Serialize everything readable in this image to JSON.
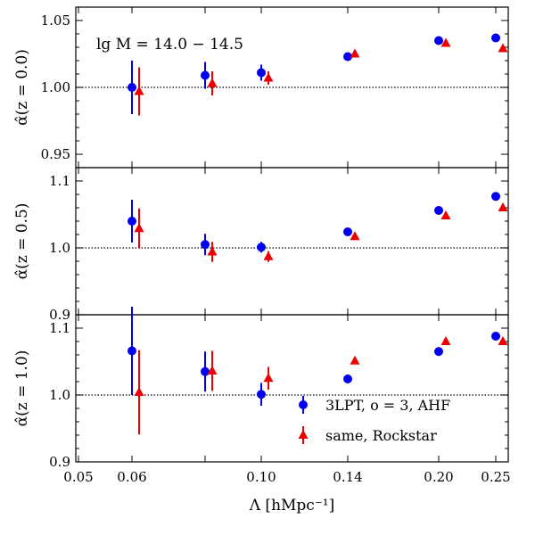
{
  "chart_data": {
    "type": "scatter",
    "x_categories": [
      0.06,
      0.08,
      0.1,
      0.14,
      0.2,
      0.25
    ],
    "xlabel": "Λ [hMpc⁻¹]",
    "xlim": [
      0.05,
      0.25
    ],
    "xticks": [
      "0.05",
      "0.06",
      "0.10",
      "0.14",
      "0.20",
      "0.25"
    ],
    "annotation": "lg M = 14.0 − 14.5",
    "legend": {
      "location": "lower-right",
      "entries": [
        "3LPT, o = 3, AHF",
        "same, Rockstar"
      ]
    },
    "series_colors": {
      "ahf": "#0000ee",
      "rockstar": "#ee0000"
    },
    "panels": [
      {
        "ylabel": "α̂(z = 0.0)",
        "ylim": [
          0.94,
          1.06
        ],
        "yticks": [
          "0.95",
          "1.00",
          "1.05"
        ],
        "reference_line": 1.0,
        "series": [
          {
            "name": "3LPT, o = 3, AHF",
            "marker": "circle",
            "x": [
              0.06,
              0.08,
              0.1,
              0.14,
              0.2,
              0.25
            ],
            "y": [
              1.0,
              1.009,
              1.011,
              1.023,
              1.035,
              1.037
            ],
            "err": [
              0.02,
              0.01,
              0.006,
              0.0,
              0.0,
              0.0
            ]
          },
          {
            "name": "same, Rockstar",
            "marker": "triangle",
            "x": [
              0.06,
              0.08,
              0.1,
              0.14,
              0.2,
              0.25
            ],
            "y": [
              0.997,
              1.003,
              1.007,
              1.025,
              1.033,
              1.029
            ],
            "err": [
              0.018,
              0.009,
              0.005,
              0.0,
              0.0,
              0.0
            ]
          }
        ]
      },
      {
        "ylabel": "α̂(z = 0.5)",
        "ylim": [
          0.9,
          1.12
        ],
        "yticks": [
          "0.9",
          "1.0",
          "1.1"
        ],
        "reference_line": 1.0,
        "series": [
          {
            "name": "3LPT, o = 3, AHF",
            "marker": "circle",
            "x": [
              0.06,
              0.08,
              0.1,
              0.14,
              0.2,
              0.25
            ],
            "y": [
              1.04,
              1.005,
              1.001,
              1.024,
              1.056,
              1.077
            ],
            "err": [
              0.032,
              0.016,
              0.008,
              0.0,
              0.0,
              0.0
            ]
          },
          {
            "name": "same, Rockstar",
            "marker": "triangle",
            "x": [
              0.06,
              0.08,
              0.1,
              0.14,
              0.2,
              0.25
            ],
            "y": [
              1.029,
              0.994,
              0.987,
              1.017,
              1.048,
              1.06
            ],
            "err": [
              0.03,
              0.015,
              0.008,
              0.0,
              0.0,
              0.0
            ]
          }
        ]
      },
      {
        "ylabel": "α̂(z = 1.0)",
        "ylim": [
          0.9,
          1.12
        ],
        "yticks": [
          "0.9",
          "1.0",
          "1.1"
        ],
        "reference_line": 1.0,
        "series": [
          {
            "name": "3LPT, o = 3, AHF",
            "marker": "circle",
            "x": [
              0.06,
              0.08,
              0.1,
              0.14,
              0.2,
              0.25
            ],
            "y": [
              1.066,
              1.035,
              1.001,
              1.024,
              1.065,
              1.088
            ],
            "err": [
              0.066,
              0.03,
              0.017,
              0.0,
              0.0,
              0.0
            ]
          },
          {
            "name": "same, Rockstar",
            "marker": "triangle",
            "x": [
              0.06,
              0.08,
              0.1,
              0.14,
              0.2,
              0.25
            ],
            "y": [
              1.004,
              1.036,
              1.025,
              1.051,
              1.08,
              1.08
            ],
            "err": [
              0.063,
              0.03,
              0.017,
              0.0,
              0.0,
              0.0
            ]
          }
        ]
      }
    ]
  }
}
